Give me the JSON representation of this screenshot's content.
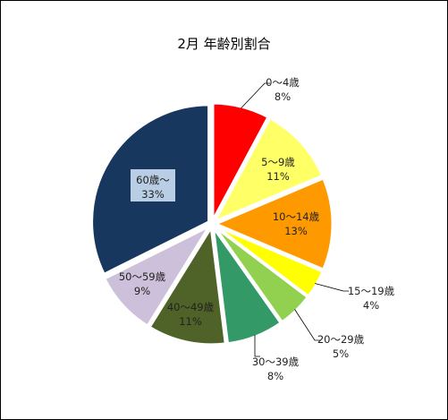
{
  "chart_data": {
    "type": "pie",
    "title": "2月  年齢別割合",
    "categories": [
      "0～4歳",
      "5～9歳",
      "10～14歳",
      "15～19歳",
      "20～29歳",
      "30～39歳",
      "40～49歳",
      "50～59歳",
      "60歳～"
    ],
    "values": [
      8,
      11,
      13,
      4,
      5,
      8,
      11,
      9,
      33
    ],
    "percent_labels": [
      "8%",
      "11%",
      "13%",
      "4%",
      "5%",
      "8%",
      "11%",
      "9%",
      "33%"
    ],
    "colors": [
      "#ff0000",
      "#ffff66",
      "#ff9900",
      "#ffff00",
      "#92d050",
      "#339966",
      "#4f6228",
      "#ccc0da",
      "#17375e"
    ],
    "exploded": [
      true,
      true,
      true,
      true,
      true,
      true,
      true,
      true,
      true
    ],
    "legend": "none"
  }
}
